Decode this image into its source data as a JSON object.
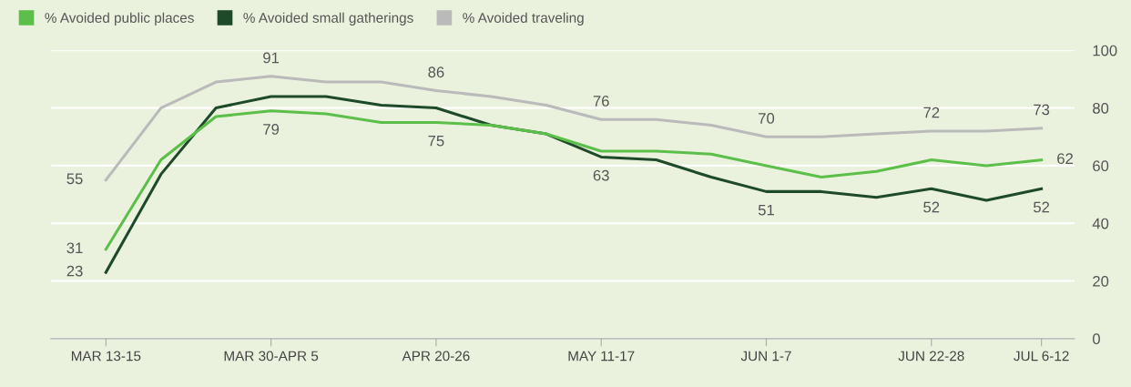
{
  "chart_data": {
    "type": "line",
    "categories": [
      "MAR 13-15",
      null,
      null,
      "MAR 30-APR 5",
      null,
      null,
      "APR 20-26",
      null,
      null,
      "MAY 11-17",
      null,
      null,
      "JUN 1-7",
      null,
      null,
      "JUN 22-28",
      null,
      "JUL 6-12"
    ],
    "series": [
      {
        "name": "% Avoided public places",
        "color": "#5cbf4a",
        "values": [
          31,
          62,
          77,
          79,
          78,
          75,
          75,
          74,
          71,
          65,
          65,
          64,
          60,
          56,
          58,
          62,
          60,
          62
        ],
        "value_labels": [
          "31",
          null,
          null,
          "79",
          null,
          null,
          "75",
          null,
          null,
          null,
          null,
          null,
          null,
          null,
          null,
          null,
          null,
          "62"
        ]
      },
      {
        "name": "% Avoided small gatherings",
        "color": "#1e4a2a",
        "values": [
          23,
          57,
          80,
          84,
          84,
          81,
          80,
          74,
          71,
          63,
          62,
          56,
          51,
          51,
          49,
          52,
          48,
          52
        ],
        "value_labels": [
          "23",
          null,
          null,
          null,
          null,
          null,
          null,
          null,
          null,
          "63",
          null,
          null,
          "51",
          null,
          null,
          "52",
          null,
          "52"
        ]
      },
      {
        "name": "% Avoided traveling",
        "color": "#bababa",
        "values": [
          55,
          80,
          89,
          91,
          89,
          89,
          86,
          84,
          81,
          76,
          76,
          74,
          70,
          70,
          71,
          72,
          72,
          73
        ],
        "value_labels": [
          "55",
          null,
          null,
          "91",
          null,
          null,
          "86",
          null,
          null,
          "76",
          null,
          null,
          "70",
          null,
          null,
          "72",
          null,
          "73"
        ]
      }
    ],
    "ylim": [
      0,
      100
    ],
    "yticks": [
      0,
      20,
      40,
      60,
      80,
      100
    ],
    "grid": "y",
    "legend": "top left",
    "marker": "none",
    "line_style": "solid"
  }
}
